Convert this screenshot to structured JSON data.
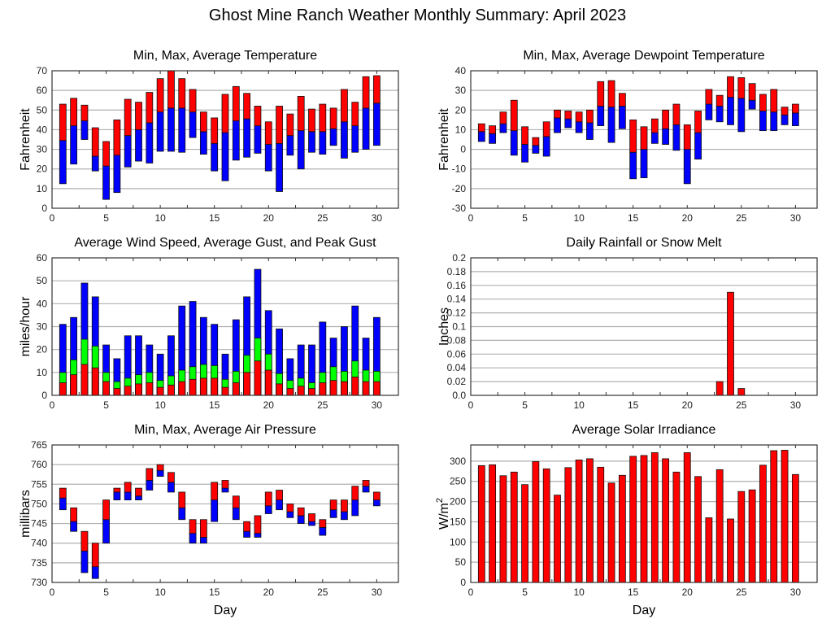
{
  "page": {
    "title": "Ghost Mine Ranch Weather Monthly Summary: April 2023"
  },
  "colors": {
    "red": "#ff0000",
    "blue": "#0000ff",
    "green": "#00ff00",
    "grid": "#b0b0b0",
    "axis": "#333333"
  },
  "chart_data": [
    {
      "id": "temperature",
      "type": "bar",
      "subtype": "floating-stacked",
      "title": "Min, Max, Average Temperature",
      "xlabel": "",
      "ylabel": "Fahrenheit",
      "xlim": [
        0,
        32
      ],
      "ylim": [
        0,
        70
      ],
      "xticks": [
        0,
        5,
        10,
        15,
        20,
        25,
        30
      ],
      "yticks": [
        0,
        10,
        20,
        30,
        40,
        50,
        60,
        70
      ],
      "grid": true,
      "x": [
        1,
        2,
        3,
        4,
        5,
        6,
        7,
        8,
        9,
        10,
        11,
        12,
        13,
        14,
        15,
        16,
        17,
        18,
        19,
        20,
        21,
        22,
        23,
        24,
        25,
        26,
        27,
        28,
        29,
        30
      ],
      "series": [
        {
          "name": "Min",
          "values": [
            12.5,
            22.5,
            35,
            19,
            4.5,
            8,
            21,
            24,
            23,
            29,
            29,
            28.5,
            36,
            27.5,
            19,
            14,
            24.5,
            26,
            28,
            19,
            8.5,
            27,
            20,
            28.5,
            27.5,
            32,
            25.5,
            28.5,
            30,
            32
          ]
        },
        {
          "name": "Average",
          "values": [
            34.5,
            42,
            44.5,
            26.5,
            21.5,
            27,
            37,
            40,
            43.5,
            49,
            51,
            51,
            49,
            39,
            33,
            38.5,
            44.5,
            45.5,
            42,
            32.5,
            33,
            37,
            39.5,
            39,
            39,
            40.5,
            44,
            42,
            51,
            53.5
          ]
        },
        {
          "name": "Max",
          "values": [
            53,
            56,
            52.5,
            41,
            34,
            45,
            55.5,
            54,
            59,
            66,
            70,
            66,
            60.5,
            49,
            46,
            58,
            62,
            58.5,
            52,
            44,
            52,
            48,
            57,
            50.5,
            53,
            51,
            60.5,
            54,
            67,
            67.5
          ]
        }
      ]
    },
    {
      "id": "dewpoint",
      "type": "bar",
      "subtype": "floating-stacked",
      "title": "Min, Max, Average Dewpoint Temperature",
      "xlabel": "",
      "ylabel": "Fahrenheit",
      "xlim": [
        0,
        32
      ],
      "ylim": [
        -30,
        40
      ],
      "xticks": [
        0,
        5,
        10,
        15,
        20,
        25,
        30
      ],
      "yticks": [
        -30,
        -20,
        -10,
        0,
        10,
        20,
        30,
        40
      ],
      "grid": true,
      "x": [
        1,
        2,
        3,
        4,
        5,
        6,
        7,
        8,
        9,
        10,
        11,
        12,
        13,
        14,
        15,
        16,
        17,
        18,
        19,
        20,
        21,
        22,
        23,
        24,
        25,
        26,
        27,
        28,
        29,
        30
      ],
      "series": [
        {
          "name": "Min",
          "values": [
            4,
            3,
            8.5,
            -3,
            -6.5,
            -2,
            -3.5,
            8.5,
            11,
            8.5,
            5,
            12,
            3.5,
            10.5,
            -15,
            -14.5,
            3,
            2.5,
            -0.5,
            -17.5,
            -5,
            15,
            14,
            12.5,
            9,
            20.5,
            9.5,
            9.5,
            12.5,
            12
          ]
        },
        {
          "name": "Average",
          "values": [
            9,
            8,
            13,
            9.5,
            2.5,
            2,
            6.5,
            16,
            15.5,
            14,
            13.5,
            22,
            21.5,
            22,
            -1.5,
            0,
            8.5,
            10.5,
            12.5,
            0,
            8.5,
            23,
            22,
            26.5,
            26,
            25,
            19.5,
            19,
            17.5,
            18.5
          ]
        },
        {
          "name": "Max",
          "values": [
            13,
            12,
            19,
            25,
            11.5,
            6,
            14,
            20,
            19.5,
            19,
            20,
            34.5,
            35,
            28.5,
            15,
            11.5,
            15.5,
            20,
            23,
            12.5,
            19.5,
            30.5,
            27.5,
            37,
            36.5,
            33.5,
            28,
            30.5,
            21.5,
            23
          ]
        }
      ]
    },
    {
      "id": "wind",
      "type": "bar",
      "subtype": "overlapping",
      "title": "Average Wind Speed, Average Gust, and Peak Gust",
      "xlabel": "",
      "ylabel": "miles/hour",
      "xlim": [
        0,
        32
      ],
      "ylim": [
        0,
        60
      ],
      "xticks": [
        0,
        5,
        10,
        15,
        20,
        25,
        30
      ],
      "yticks": [
        0,
        10,
        20,
        30,
        40,
        50,
        60
      ],
      "grid": true,
      "x": [
        1,
        2,
        3,
        4,
        5,
        6,
        7,
        8,
        9,
        10,
        11,
        12,
        13,
        14,
        15,
        16,
        17,
        18,
        19,
        20,
        21,
        22,
        23,
        24,
        25,
        26,
        27,
        28,
        29,
        30
      ],
      "series": [
        {
          "name": "Average Wind Speed",
          "color": "red",
          "values": [
            5.5,
            9,
            13.5,
            12,
            6,
            3,
            4,
            5,
            5.5,
            3.5,
            4.5,
            6,
            7,
            7.5,
            7.5,
            3.5,
            5.5,
            10,
            15,
            11,
            5,
            3,
            4,
            3,
            5.5,
            6.5,
            6,
            8,
            6,
            6
          ]
        },
        {
          "name": "Average Gust",
          "color": "green",
          "values": [
            10,
            15.5,
            24.5,
            21.5,
            10,
            6,
            7.5,
            9,
            10,
            6.5,
            8.5,
            11,
            12.5,
            13.5,
            13,
            7,
            10.5,
            17.5,
            25,
            18,
            9.5,
            6.5,
            7.5,
            5.5,
            10,
            12.5,
            10.5,
            15,
            11,
            10.5
          ]
        },
        {
          "name": "Peak Gust",
          "color": "blue",
          "values": [
            31,
            34,
            49,
            43,
            22,
            16,
            26,
            26,
            22,
            18,
            26,
            39,
            41,
            34,
            31,
            18,
            33,
            43,
            55,
            37,
            29,
            16,
            22,
            22,
            32,
            25,
            30,
            39,
            25,
            34
          ]
        }
      ]
    },
    {
      "id": "rainfall",
      "type": "bar",
      "title": "Daily Rainfall or Snow Melt",
      "xlabel": "",
      "ylabel": "Inches",
      "xlim": [
        0,
        32
      ],
      "ylim": [
        0,
        0.2
      ],
      "xticks": [
        0,
        5,
        10,
        15,
        20,
        25,
        30
      ],
      "yticks": [
        "0.0",
        "0.02",
        "0.04",
        "0.06",
        "0.08",
        "0.1",
        "0.12",
        "0.14",
        "0.16",
        "0.18",
        "0.2"
      ],
      "grid": true,
      "x": [
        23,
        24,
        25
      ],
      "series": [
        {
          "name": "Rainfall",
          "values": [
            0.02,
            0.15,
            0.01
          ]
        }
      ]
    },
    {
      "id": "pressure",
      "type": "bar",
      "subtype": "floating-stacked",
      "title": "Min, Max, Average Air Pressure",
      "xlabel": "Day",
      "ylabel": "millibars",
      "xlim": [
        0,
        32
      ],
      "ylim": [
        730,
        765
      ],
      "xticks": [
        0,
        5,
        10,
        15,
        20,
        25,
        30
      ],
      "yticks": [
        730,
        735,
        740,
        745,
        750,
        755,
        760,
        765
      ],
      "grid": true,
      "x": [
        1,
        2,
        3,
        4,
        5,
        6,
        7,
        8,
        9,
        10,
        11,
        12,
        13,
        14,
        15,
        16,
        17,
        18,
        19,
        20,
        21,
        22,
        23,
        24,
        25,
        26,
        27,
        28,
        29,
        30
      ],
      "series": [
        {
          "name": "Min",
          "values": [
            748.5,
            743,
            732.5,
            731,
            740,
            751,
            751,
            751,
            753.5,
            757,
            753,
            746,
            740,
            740,
            745.5,
            753,
            746,
            741.5,
            741.5,
            747.5,
            748.5,
            746.5,
            745,
            744.5,
            742,
            746.5,
            746,
            747,
            753,
            749.5
          ]
        },
        {
          "name": "Average",
          "values": [
            751.5,
            745.5,
            738,
            734,
            746,
            753,
            753,
            752,
            756,
            758.5,
            755.5,
            749,
            742.5,
            741.5,
            751,
            754,
            749,
            743,
            742.5,
            749.5,
            751,
            748,
            747,
            745.5,
            744,
            748.5,
            748,
            751,
            754.5,
            751
          ]
        },
        {
          "name": "Max",
          "values": [
            754,
            749,
            743,
            740,
            751,
            754,
            755.5,
            754,
            759,
            760,
            758,
            753,
            746,
            746,
            755.5,
            756,
            752,
            745.5,
            747,
            753,
            753.5,
            750,
            749,
            747.5,
            746,
            751,
            751,
            754.5,
            756,
            753
          ]
        }
      ]
    },
    {
      "id": "solar",
      "type": "bar",
      "title": "Average Solar Irradiance",
      "xlabel": "Day",
      "ylabel": "W/m",
      "ylabel_superscript": "2",
      "xlim": [
        0,
        32
      ],
      "ylim": [
        0,
        340
      ],
      "xticks": [
        0,
        5,
        10,
        15,
        20,
        25,
        30
      ],
      "yticks": [
        0,
        50,
        100,
        150,
        200,
        250,
        300
      ],
      "grid": true,
      "x": [
        1,
        2,
        3,
        4,
        5,
        6,
        7,
        8,
        9,
        10,
        11,
        12,
        13,
        14,
        15,
        16,
        17,
        18,
        19,
        20,
        21,
        22,
        23,
        24,
        25,
        26,
        27,
        28,
        29,
        30
      ],
      "series": [
        {
          "name": "Solar Irradiance",
          "values": [
            289,
            291,
            264,
            273,
            242,
            299,
            281,
            216,
            284,
            303,
            306,
            285,
            246,
            265,
            312,
            314,
            321,
            306,
            273,
            321,
            262,
            160,
            279,
            157,
            225,
            229,
            290,
            326,
            327,
            267
          ]
        }
      ]
    }
  ]
}
